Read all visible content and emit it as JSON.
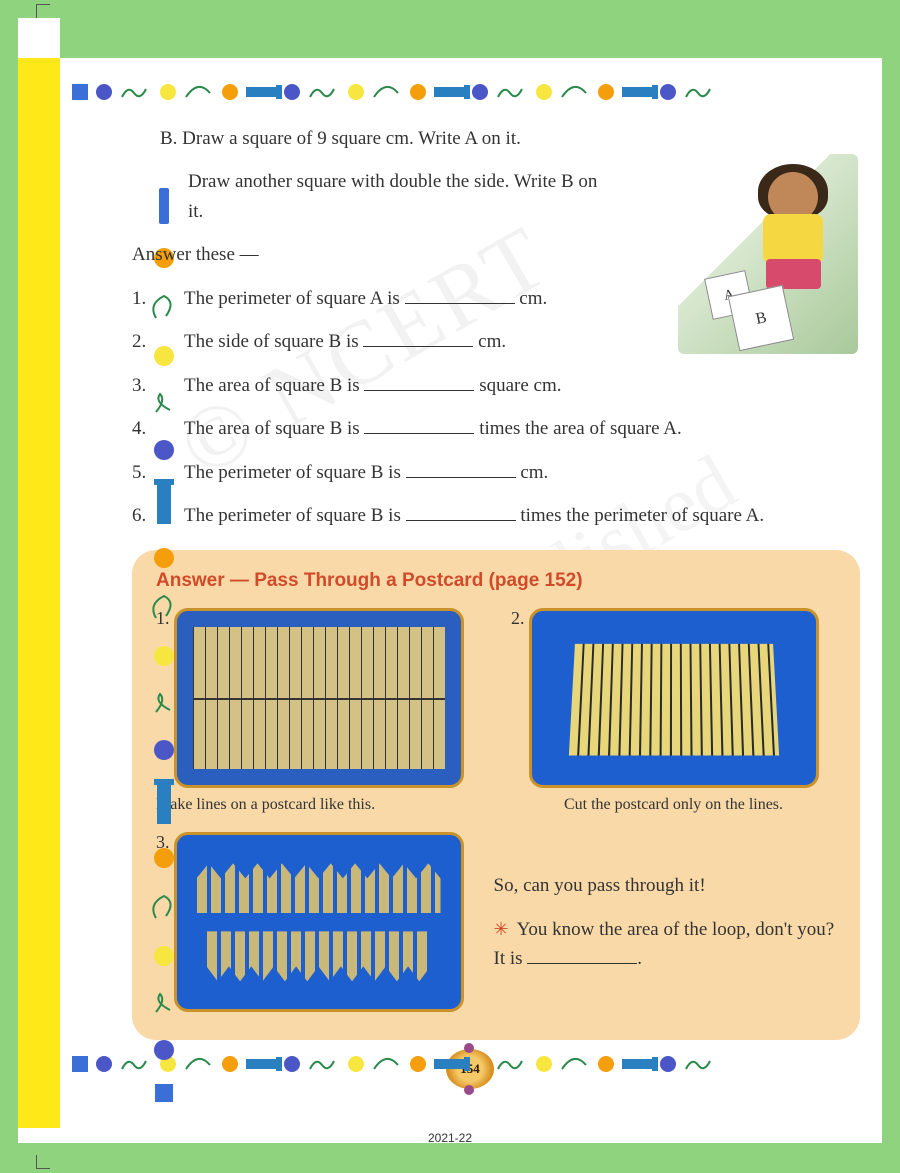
{
  "questionB": {
    "line1": "B. Draw a square of 9 square cm. Write A on it.",
    "line2": "Draw another square with double the side. Write B on it."
  },
  "answerThese": "Answer these —",
  "questions": [
    {
      "num": "1.",
      "before": "The perimeter of square A is ",
      "after": " cm."
    },
    {
      "num": "2.",
      "before": "The side of square B is ",
      "after": " cm."
    },
    {
      "num": "3.",
      "before": "The area of square B is ",
      "after": " square cm."
    },
    {
      "num": "4.",
      "before": "The area of square B is ",
      "after": " times the area of square A."
    },
    {
      "num": "5.",
      "before": "The perimeter of square B is ",
      "after": " cm."
    },
    {
      "num": "6.",
      "before": "The perimeter of square B is ",
      "after": " times the perimeter of square A."
    }
  ],
  "illustration": {
    "labelA": "A",
    "labelB": "B"
  },
  "answerSection": {
    "title": "Answer — Pass Through a Postcard (page 152)",
    "steps": [
      {
        "num": "1.",
        "caption": "Make lines on a postcard like  this."
      },
      {
        "num": "2.",
        "caption": "Cut the postcard only on the lines."
      },
      {
        "num": "3.",
        "caption": ""
      }
    ],
    "bottom": {
      "line1": "So, can you pass through it!",
      "line2before": "You know the area of the loop, don't you? It is ",
      "line2after": "."
    }
  },
  "pageNumber": "154",
  "footerYear": "2021-22",
  "watermark1": "© NCERT",
  "watermark2": "not to be republished",
  "colors": {
    "frameGreen": "#8fd37e",
    "yellowStrip": "#ffe817",
    "answerBox": "#f9d9a8",
    "answerTitle": "#d14a2a",
    "decoBlue": "#3a6fd8",
    "decoBlueCircle": "#4b57c7",
    "decoYellow": "#f6e63f",
    "decoOrange": "#f59e0b",
    "decoBar": "#2a7fc0",
    "decoGreen": "#2a8a4a",
    "photoBlue": "#2a5fc0"
  }
}
